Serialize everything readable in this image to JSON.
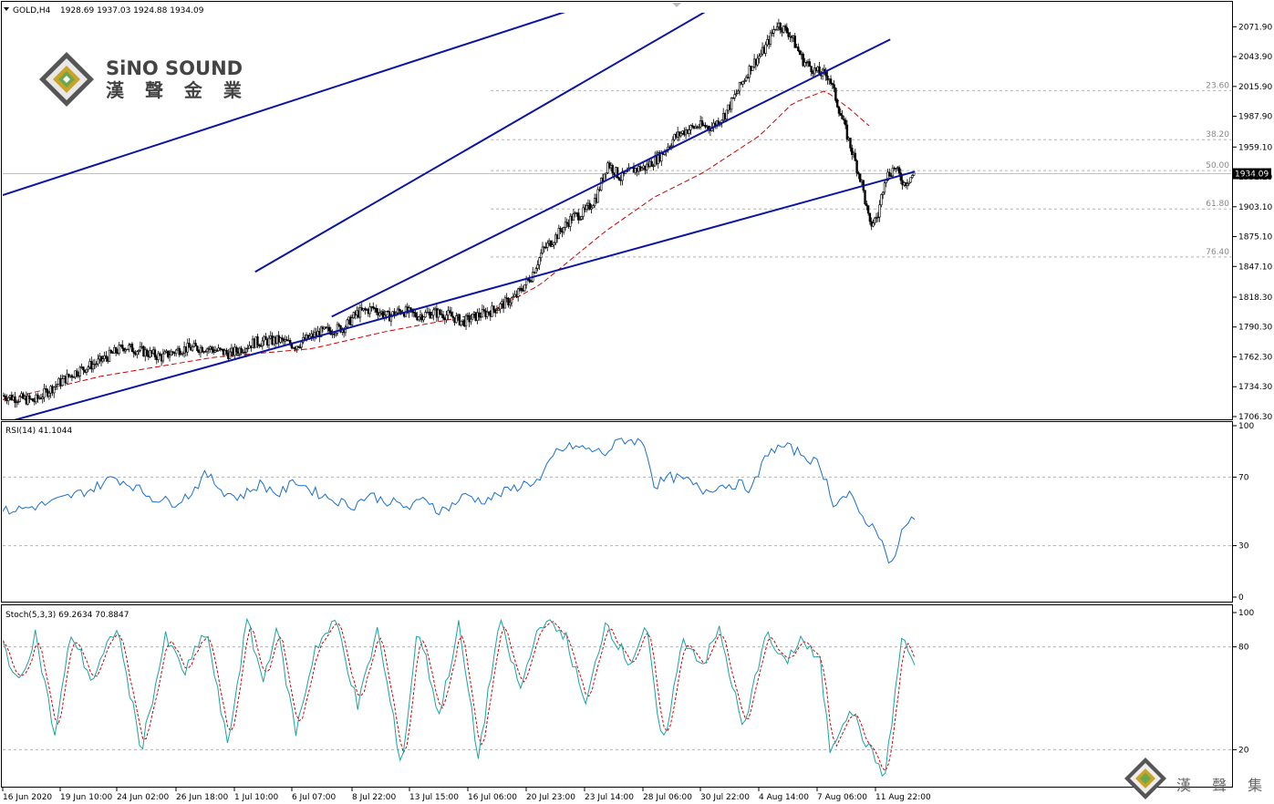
{
  "header": {
    "symbol": "GOLD,H4",
    "ohlc": "1928.69 1937.03 1924.88 1934.09",
    "rsi_label": "RSI(14) 41.1044",
    "stoch_label": "Stoch(5,3,3) 69.2634 70.8847"
  },
  "logo": {
    "title": "SiNO SOUND",
    "subtitle": "漢 聲 金 業"
  },
  "watermark": {
    "text": "漢 聲 集 團"
  },
  "colors": {
    "candle": "#000000",
    "trendline": "#0a14a0",
    "ma": "#cc0000",
    "rsi": "#1a6fcc",
    "stoch_main": "#1aa3a3",
    "stoch_signal": "#cc0000",
    "grid": "#b4b4b4",
    "current_price_line": "#c0c0c0"
  },
  "chart_data": [
    {
      "type": "candlestick",
      "symbol": "GOLD",
      "timeframe": "H4",
      "price_axis": {
        "min": 1706.3,
        "max": 2085,
        "ticks": [
          "2071.90",
          "2043.90",
          "2015.90",
          "1987.90",
          "1959.10",
          "1931.10",
          "1903.10",
          "1875.10",
          "1847.10",
          "1818.30",
          "1790.30",
          "1762.30",
          "1734.30",
          "1706.30"
        ],
        "tick_values": [
          2071.9,
          2043.9,
          2015.9,
          1987.9,
          1959.1,
          1931.1,
          1903.1,
          1875.1,
          1847.1,
          1818.3,
          1790.3,
          1762.3,
          1734.3,
          1706.3
        ]
      },
      "current_price": {
        "label": "1934.09",
        "value": 1934.09
      },
      "fibonacci": [
        {
          "label": "23.60",
          "price": 2012
        },
        {
          "label": "38.20",
          "price": 1966
        },
        {
          "label": "50.00",
          "price": 1937
        },
        {
          "label": "61.80",
          "price": 1901
        },
        {
          "label": "76.40",
          "price": 1856
        }
      ],
      "time_axis": [
        "16 Jun 2020",
        "19 Jun 10:00",
        "24 Jun 02:00",
        "26 Jun 18:00",
        "1 Jul 10:00",
        "6 Jul 07:00",
        "8 Jul 22:00",
        "13 Jul 15:00",
        "16 Jul 06:00",
        "20 Jul 23:00",
        "23 Jul 14:00",
        "28 Jul 06:00",
        "30 Jul 22:00",
        "4 Aug 14:00",
        "7 Aug 06:00",
        "11 Aug 22:00"
      ],
      "close_path": [
        [
          0,
          1726
        ],
        [
          20,
          1721
        ],
        [
          35,
          1738
        ],
        [
          45,
          1748
        ],
        [
          60,
          1758
        ],
        [
          75,
          1772
        ],
        [
          85,
          1768
        ],
        [
          98,
          1762
        ],
        [
          110,
          1770
        ],
        [
          125,
          1771
        ],
        [
          140,
          1765
        ],
        [
          155,
          1776
        ],
        [
          170,
          1778
        ],
        [
          180,
          1773
        ],
        [
          195,
          1785
        ],
        [
          210,
          1790
        ],
        [
          218,
          1803
        ],
        [
          228,
          1808
        ],
        [
          237,
          1800
        ],
        [
          245,
          1806
        ],
        [
          255,
          1801
        ],
        [
          265,
          1804
        ],
        [
          275,
          1801
        ],
        [
          283,
          1795
        ],
        [
          292,
          1801
        ],
        [
          300,
          1805
        ],
        [
          315,
          1818
        ],
        [
          325,
          1838
        ],
        [
          332,
          1862
        ],
        [
          340,
          1875
        ],
        [
          350,
          1893
        ],
        [
          358,
          1898
        ],
        [
          365,
          1912
        ],
        [
          372,
          1944
        ],
        [
          380,
          1930
        ],
        [
          388,
          1938
        ],
        [
          395,
          1940
        ],
        [
          405,
          1952
        ],
        [
          413,
          1968
        ],
        [
          420,
          1975
        ],
        [
          428,
          1979
        ],
        [
          436,
          1978
        ],
        [
          444,
          1990
        ],
        [
          452,
          2012
        ],
        [
          460,
          2035
        ],
        [
          468,
          2050
        ],
        [
          476,
          2075
        ],
        [
          484,
          2065
        ],
        [
          492,
          2040
        ],
        [
          500,
          2030
        ],
        [
          508,
          2025
        ],
        [
          512,
          2005
        ],
        [
          518,
          1975
        ],
        [
          524,
          1945
        ],
        [
          528,
          1925
        ],
        [
          533,
          1885
        ],
        [
          538,
          1895
        ],
        [
          542,
          1930
        ],
        [
          548,
          1940
        ],
        [
          554,
          1925
        ],
        [
          560,
          1934
        ]
      ],
      "total_bars": 560,
      "moving_average_path": [
        [
          0,
          1722
        ],
        [
          60,
          1744
        ],
        [
          130,
          1762
        ],
        [
          190,
          1770
        ],
        [
          235,
          1786
        ],
        [
          270,
          1796
        ],
        [
          300,
          1805
        ],
        [
          330,
          1830
        ],
        [
          370,
          1880
        ],
        [
          400,
          1912
        ],
        [
          430,
          1935
        ],
        [
          465,
          1970
        ],
        [
          485,
          2000
        ],
        [
          505,
          2012
        ],
        [
          520,
          1995
        ],
        [
          535,
          1975
        ]
      ],
      "trendlines": [
        {
          "name": "lower-channel-line",
          "points": [
            [
              0,
              1700
            ],
            [
              560,
              1936
            ]
          ]
        },
        {
          "name": "upper-long-line",
          "points": [
            [
              0,
              1914
            ],
            [
              410,
              2118
            ]
          ]
        },
        {
          "name": "inner-support-line",
          "points": [
            [
              202,
              1800
            ],
            [
              545,
              2060
            ]
          ]
        },
        {
          "name": "inner-resistance-line",
          "points": [
            [
              155,
              1842
            ],
            [
              470,
              2120
            ]
          ]
        }
      ]
    },
    {
      "type": "line",
      "indicator": "RSI(14)",
      "value": 41.1044,
      "ylim": [
        0,
        100
      ],
      "levels": [
        30,
        70
      ],
      "ticks": [
        "100",
        "70",
        "30",
        "0"
      ],
      "series": [
        [
          0,
          50
        ],
        [
          15,
          52
        ],
        [
          30,
          55
        ],
        [
          45,
          60
        ],
        [
          55,
          63
        ],
        [
          68,
          70
        ],
        [
          80,
          65
        ],
        [
          92,
          58
        ],
        [
          105,
          55
        ],
        [
          115,
          60
        ],
        [
          125,
          72
        ],
        [
          135,
          62
        ],
        [
          145,
          58
        ],
        [
          158,
          66
        ],
        [
          170,
          60
        ],
        [
          180,
          68
        ],
        [
          190,
          62
        ],
        [
          200,
          58
        ],
        [
          215,
          53
        ],
        [
          225,
          60
        ],
        [
          232,
          57
        ],
        [
          240,
          55
        ],
        [
          250,
          52
        ],
        [
          260,
          58
        ],
        [
          268,
          50
        ],
        [
          275,
          53
        ],
        [
          285,
          60
        ],
        [
          293,
          56
        ],
        [
          300,
          58
        ],
        [
          310,
          62
        ],
        [
          320,
          66
        ],
        [
          330,
          68
        ],
        [
          340,
          85
        ],
        [
          350,
          88
        ],
        [
          360,
          86
        ],
        [
          370,
          84
        ],
        [
          380,
          92
        ],
        [
          390,
          91
        ],
        [
          395,
          88
        ],
        [
          400,
          65
        ],
        [
          410,
          70
        ],
        [
          420,
          68
        ],
        [
          430,
          62
        ],
        [
          440,
          65
        ],
        [
          452,
          66
        ],
        [
          460,
          63
        ],
        [
          470,
          85
        ],
        [
          480,
          88
        ],
        [
          490,
          84
        ],
        [
          500,
          78
        ],
        [
          505,
          70
        ],
        [
          510,
          55
        ],
        [
          520,
          60
        ],
        [
          525,
          50
        ],
        [
          530,
          45
        ],
        [
          540,
          35
        ],
        [
          545,
          15
        ],
        [
          552,
          38
        ],
        [
          558,
          45
        ],
        [
          560,
          44
        ]
      ]
    },
    {
      "type": "line",
      "indicator": "Stoch(5,3,3)",
      "main": 69.2634,
      "signal": 70.8847,
      "ylim": [
        0,
        100
      ],
      "levels": [
        20,
        80
      ],
      "ticks": [
        "100",
        "80",
        "20"
      ],
      "series": [
        [
          0,
          82
        ],
        [
          10,
          58
        ],
        [
          20,
          88
        ],
        [
          32,
          28
        ],
        [
          42,
          88
        ],
        [
          55,
          60
        ],
        [
          70,
          92
        ],
        [
          85,
          20
        ],
        [
          100,
          85
        ],
        [
          112,
          65
        ],
        [
          125,
          90
        ],
        [
          138,
          22
        ],
        [
          150,
          95
        ],
        [
          160,
          60
        ],
        [
          168,
          92
        ],
        [
          180,
          30
        ],
        [
          192,
          80
        ],
        [
          205,
          95
        ],
        [
          218,
          45
        ],
        [
          230,
          90
        ],
        [
          245,
          10
        ],
        [
          255,
          92
        ],
        [
          268,
          40
        ],
        [
          280,
          92
        ],
        [
          292,
          15
        ],
        [
          305,
          95
        ],
        [
          318,
          55
        ],
        [
          330,
          95
        ],
        [
          345,
          88
        ],
        [
          358,
          45
        ],
        [
          370,
          95
        ],
        [
          385,
          70
        ],
        [
          395,
          92
        ],
        [
          405,
          20
        ],
        [
          418,
          85
        ],
        [
          430,
          70
        ],
        [
          440,
          90
        ],
        [
          455,
          30
        ],
        [
          468,
          88
        ],
        [
          480,
          70
        ],
        [
          490,
          85
        ],
        [
          502,
          70
        ],
        [
          508,
          20
        ],
        [
          520,
          45
        ],
        [
          532,
          20
        ],
        [
          542,
          5
        ],
        [
          552,
          85
        ],
        [
          560,
          70
        ]
      ]
    }
  ]
}
